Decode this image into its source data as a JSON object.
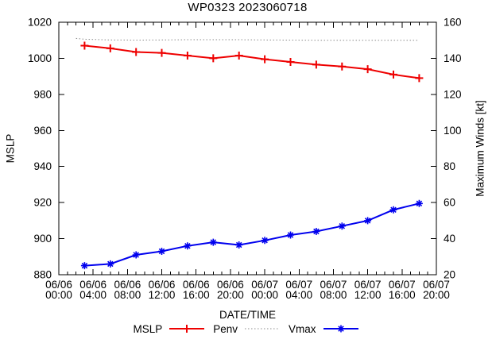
{
  "chart_data": {
    "type": "line",
    "title": "WP0323 2023060718",
    "xlabel": "DATE/TIME",
    "ylabel_left": "MSLP",
    "ylabel_right": "Maximum Winds [kt]",
    "grid": false,
    "legend_position": "bottom-center",
    "xlim_hours": [
      0,
      44
    ],
    "x_minor_tick_every_hours": 1,
    "x_major_tick_every_hours": 4,
    "ylim_left": [
      880,
      1020
    ],
    "ylim_right": [
      20,
      160
    ],
    "yticks_left": [
      880,
      900,
      920,
      940,
      960,
      980,
      1000,
      1020
    ],
    "yticks_right": [
      20,
      40,
      60,
      80,
      100,
      120,
      140,
      160
    ],
    "x_ticks": [
      {
        "hour": 0,
        "date": "06/06",
        "time": "00:00"
      },
      {
        "hour": 4,
        "date": "06/06",
        "time": "04:00"
      },
      {
        "hour": 8,
        "date": "06/06",
        "time": "08:00"
      },
      {
        "hour": 12,
        "date": "06/06",
        "time": "12:00"
      },
      {
        "hour": 16,
        "date": "06/06",
        "time": "16:00"
      },
      {
        "hour": 20,
        "date": "06/06",
        "time": "20:00"
      },
      {
        "hour": 24,
        "date": "06/07",
        "time": "00:00"
      },
      {
        "hour": 28,
        "date": "06/07",
        "time": "04:00"
      },
      {
        "hour": 32,
        "date": "06/07",
        "time": "08:00"
      },
      {
        "hour": 36,
        "date": "06/07",
        "time": "12:00"
      },
      {
        "hour": 40,
        "date": "06/07",
        "time": "16:00"
      },
      {
        "hour": 44,
        "date": "06/07",
        "time": "20:00"
      }
    ],
    "series": [
      {
        "name": "MSLP",
        "axis": "left",
        "color": "#ee0000",
        "line": "solid",
        "marker": "plus",
        "x_hours": [
          3,
          6,
          9,
          12,
          15,
          18,
          21,
          24,
          27,
          30,
          33,
          36,
          39,
          42
        ],
        "values": [
          1007,
          1005.5,
          1003.5,
          1003,
          1001.5,
          1000,
          1001.5,
          999.5,
          998,
          996.5,
          995.5,
          994,
          991,
          989
        ]
      },
      {
        "name": "Penv",
        "axis": "left",
        "color": "#8c8c8c",
        "line": "dotted",
        "marker": "none",
        "x_hours": [
          2,
          3,
          6,
          9,
          12,
          15,
          18,
          21,
          24,
          27,
          30,
          33,
          36,
          39,
          42
        ],
        "values": [
          1011,
          1010.6,
          1010.2,
          1010.1,
          1010.2,
          1010.3,
          1010.3,
          1010.3,
          1010.2,
          1010.1,
          1010,
          1010,
          1010,
          1010,
          1010
        ]
      },
      {
        "name": "Vmax",
        "axis": "right",
        "color": "#0000ee",
        "line": "solid",
        "marker": "asterisk",
        "x_hours": [
          3,
          6,
          9,
          12,
          15,
          18,
          21,
          24,
          27,
          30,
          33,
          36,
          39,
          42
        ],
        "values": [
          25,
          26,
          31,
          33,
          36,
          38,
          36.5,
          39,
          42,
          44,
          47,
          50,
          56,
          59.5
        ]
      }
    ]
  }
}
